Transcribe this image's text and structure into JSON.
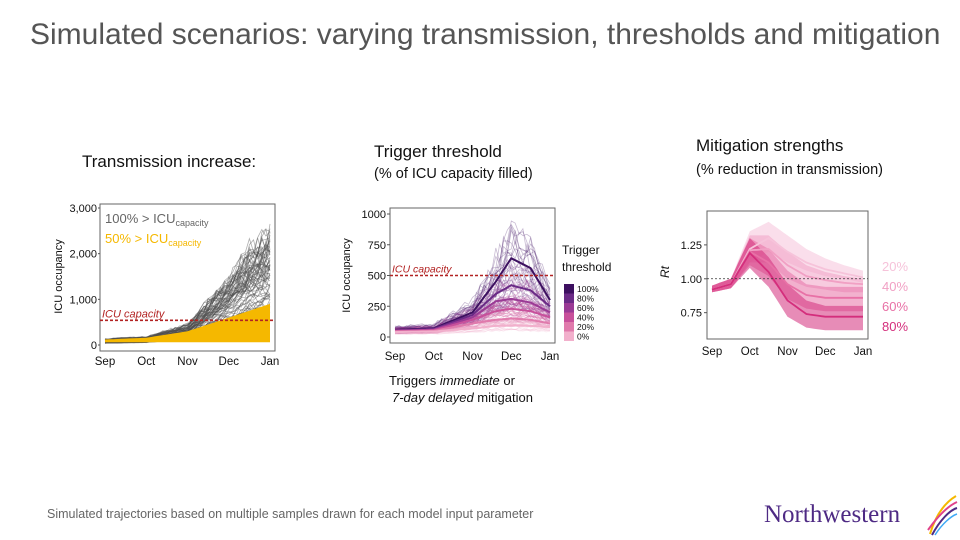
{
  "slide": {
    "title": "Simulated scenarios: varying transmission, thresholds and mitigation",
    "footer": "Simulated trajectories based on multiple samples drawn for each model input parameter",
    "logo": "Northwestern"
  },
  "panels": {
    "transmission": {
      "title": "Transmission increase:"
    },
    "threshold": {
      "title": "Trigger threshold",
      "subtitle": "(% of ICU capacity filled)",
      "caption_line1_a": "Triggers ",
      "caption_line1_b": "immediate",
      "caption_line1_c": " or",
      "caption_line2_a": "7-day delayed",
      "caption_line2_b": " mitigation"
    },
    "mitigation": {
      "title": "Mitigation strengths",
      "subtitle": "(% reduction in transmission)"
    }
  },
  "colors": {
    "gray": "#555555",
    "yellow": "#f5b800",
    "red": "#b22222",
    "purple": "#4a1464",
    "pink": "#e0428a"
  },
  "chart_data": [
    {
      "type": "line",
      "title": "Transmission increase:",
      "ylabel": "ICU occupancy",
      "categories": [
        "Sep",
        "Oct",
        "Nov",
        "Dec",
        "Jan"
      ],
      "yticks": [
        "3,000",
        "2,000",
        "1,000",
        "0"
      ],
      "ylim": [
        0,
        3000
      ],
      "capacity_label": "ICU capacity",
      "capacity_value": 540,
      "legend": [
        {
          "text": "100% > ICU",
          "sub": "capacity",
          "color": "#666666"
        },
        {
          "text": "50% > ICU",
          "sub": "capacity",
          "color": "#f5b800"
        }
      ],
      "series": [
        {
          "name": "100% > ICU capacity",
          "x": [
            0,
            1,
            2,
            3,
            3.5,
            4
          ],
          "median": [
            120,
            160,
            400,
            1300,
            1900,
            2200
          ],
          "upper": [
            150,
            250,
            900,
            2200,
            2700,
            2950
          ]
        },
        {
          "name": "50% > ICU capacity",
          "x": [
            0,
            1,
            2,
            3,
            4
          ],
          "median": [
            100,
            120,
            180,
            280,
            350
          ],
          "upper": [
            120,
            160,
            300,
            600,
            900
          ]
        }
      ]
    },
    {
      "type": "line",
      "title": "Trigger threshold",
      "ylabel": "ICU occupancy",
      "categories": [
        "Sep",
        "Oct",
        "Nov",
        "Dec",
        "Jan"
      ],
      "yticks": [
        "1000",
        "750",
        "500",
        "250",
        "0"
      ],
      "ylim": [
        0,
        1000
      ],
      "capacity_label": "ICU capacity",
      "capacity_value": 500,
      "legend_title": "Trigger threshold",
      "legend": [
        "100%",
        "80%",
        "60%",
        "40%",
        "20%",
        "0%"
      ],
      "series": [
        {
          "name": "100%",
          "x": [
            0,
            1,
            2,
            2.6,
            3,
            3.5,
            4
          ],
          "values": [
            60,
            70,
            200,
            450,
            640,
            560,
            300
          ]
        },
        {
          "name": "80%",
          "x": [
            0,
            1,
            2,
            2.6,
            3,
            3.5,
            4
          ],
          "values": [
            55,
            65,
            180,
            350,
            420,
            380,
            250
          ]
        },
        {
          "name": "60%",
          "x": [
            0,
            1,
            2,
            2.6,
            3,
            3.5,
            4
          ],
          "values": [
            50,
            60,
            160,
            290,
            310,
            280,
            200
          ]
        },
        {
          "name": "40%",
          "x": [
            0,
            1,
            2,
            2.6,
            3,
            3.5,
            4
          ],
          "values": [
            50,
            55,
            140,
            210,
            230,
            210,
            160
          ]
        },
        {
          "name": "20%",
          "x": [
            0,
            1,
            2,
            2.6,
            3,
            3.5,
            4
          ],
          "values": [
            45,
            50,
            110,
            140,
            150,
            140,
            110
          ]
        },
        {
          "name": "0%",
          "x": [
            0,
            1,
            2,
            2.6,
            3,
            3.5,
            4
          ],
          "values": [
            40,
            45,
            70,
            90,
            95,
            90,
            80
          ]
        }
      ]
    },
    {
      "type": "line",
      "ylabel": "Rt",
      "categories": [
        "Sep",
        "Oct",
        "Nov",
        "Dec",
        "Jan"
      ],
      "yticks": [
        "1.25",
        "1.00",
        "0.75"
      ],
      "ylim": [
        0.6,
        1.5
      ],
      "reference_value": 1.0,
      "series": [
        {
          "name": "20%",
          "x": [
            0,
            0.5,
            1,
            1.5,
            2,
            2.5,
            3,
            3.5,
            4
          ],
          "values": [
            0.92,
            0.96,
            1.22,
            1.3,
            1.2,
            1.12,
            1.07,
            1.04,
            1.01
          ],
          "lower": [
            0.9,
            0.93,
            1.12,
            1.2,
            1.12,
            1.06,
            1.02,
            1.0,
            0.97
          ],
          "upper": [
            0.95,
            1.0,
            1.35,
            1.42,
            1.32,
            1.22,
            1.15,
            1.1,
            1.06
          ]
        },
        {
          "name": "40%",
          "x": [
            0,
            0.5,
            1,
            1.5,
            2,
            2.5,
            3,
            3.5,
            4
          ],
          "values": [
            0.92,
            0.96,
            1.21,
            1.22,
            1.1,
            1.02,
            0.99,
            0.97,
            0.96
          ],
          "lower": [
            0.9,
            0.93,
            1.12,
            1.12,
            1.0,
            0.94,
            0.92,
            0.9,
            0.9
          ],
          "upper": [
            0.95,
            1.0,
            1.32,
            1.32,
            1.2,
            1.1,
            1.05,
            1.02,
            1.0
          ]
        },
        {
          "name": "60%",
          "x": [
            0,
            0.5,
            1,
            1.5,
            2,
            2.5,
            3,
            3.5,
            4
          ],
          "values": [
            0.92,
            0.96,
            1.2,
            1.12,
            0.96,
            0.88,
            0.86,
            0.86,
            0.86
          ],
          "lower": [
            0.9,
            0.93,
            1.1,
            1.02,
            0.85,
            0.78,
            0.76,
            0.76,
            0.76
          ],
          "upper": [
            0.95,
            1.0,
            1.3,
            1.22,
            1.06,
            0.96,
            0.94,
            0.94,
            0.94
          ]
        },
        {
          "name": "80%",
          "x": [
            0,
            0.5,
            1,
            1.5,
            2,
            2.5,
            3,
            3.5,
            4
          ],
          "values": [
            0.92,
            0.96,
            1.19,
            1.05,
            0.84,
            0.74,
            0.72,
            0.72,
            0.72
          ],
          "lower": [
            0.9,
            0.93,
            1.08,
            0.94,
            0.72,
            0.64,
            0.62,
            0.62,
            0.62
          ],
          "upper": [
            0.95,
            1.0,
            1.3,
            1.16,
            0.96,
            0.84,
            0.8,
            0.8,
            0.8
          ]
        }
      ],
      "legend": [
        {
          "text": "20%",
          "color": "#f6c3da"
        },
        {
          "text": "40%",
          "color": "#f1a0c4"
        },
        {
          "text": "60%",
          "color": "#e871a6"
        },
        {
          "text": "80%",
          "color": "#d42e7c"
        }
      ]
    }
  ]
}
